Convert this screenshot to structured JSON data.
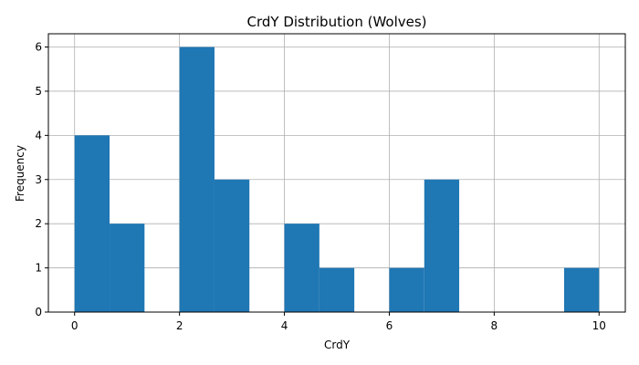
{
  "chart_data": {
    "type": "bar",
    "title": "CrdY Distribution (Wolves)",
    "xlabel": "CrdY",
    "ylabel": "Frequency",
    "xlim": [
      -0.5,
      10.5
    ],
    "ylim": [
      0,
      6.3
    ],
    "xticks": [
      0,
      2,
      4,
      6,
      8,
      10
    ],
    "yticks": [
      0,
      1,
      2,
      3,
      4,
      5,
      6
    ],
    "grid": true,
    "bar_color": "#1f77b4",
    "bins": [
      {
        "x0": 0.0,
        "x1": 0.667,
        "count": 4
      },
      {
        "x0": 0.667,
        "x1": 1.333,
        "count": 2
      },
      {
        "x0": 1.333,
        "x1": 2.0,
        "count": 0
      },
      {
        "x0": 2.0,
        "x1": 2.667,
        "count": 6
      },
      {
        "x0": 2.667,
        "x1": 3.333,
        "count": 3
      },
      {
        "x0": 3.333,
        "x1": 4.0,
        "count": 0
      },
      {
        "x0": 4.0,
        "x1": 4.667,
        "count": 2
      },
      {
        "x0": 4.667,
        "x1": 5.333,
        "count": 1
      },
      {
        "x0": 5.333,
        "x1": 6.0,
        "count": 0
      },
      {
        "x0": 6.0,
        "x1": 6.667,
        "count": 1
      },
      {
        "x0": 6.667,
        "x1": 7.333,
        "count": 3
      },
      {
        "x0": 7.333,
        "x1": 8.0,
        "count": 0
      },
      {
        "x0": 8.0,
        "x1": 8.667,
        "count": 0
      },
      {
        "x0": 8.667,
        "x1": 9.333,
        "count": 0
      },
      {
        "x0": 9.333,
        "x1": 10.0,
        "count": 1
      }
    ]
  }
}
